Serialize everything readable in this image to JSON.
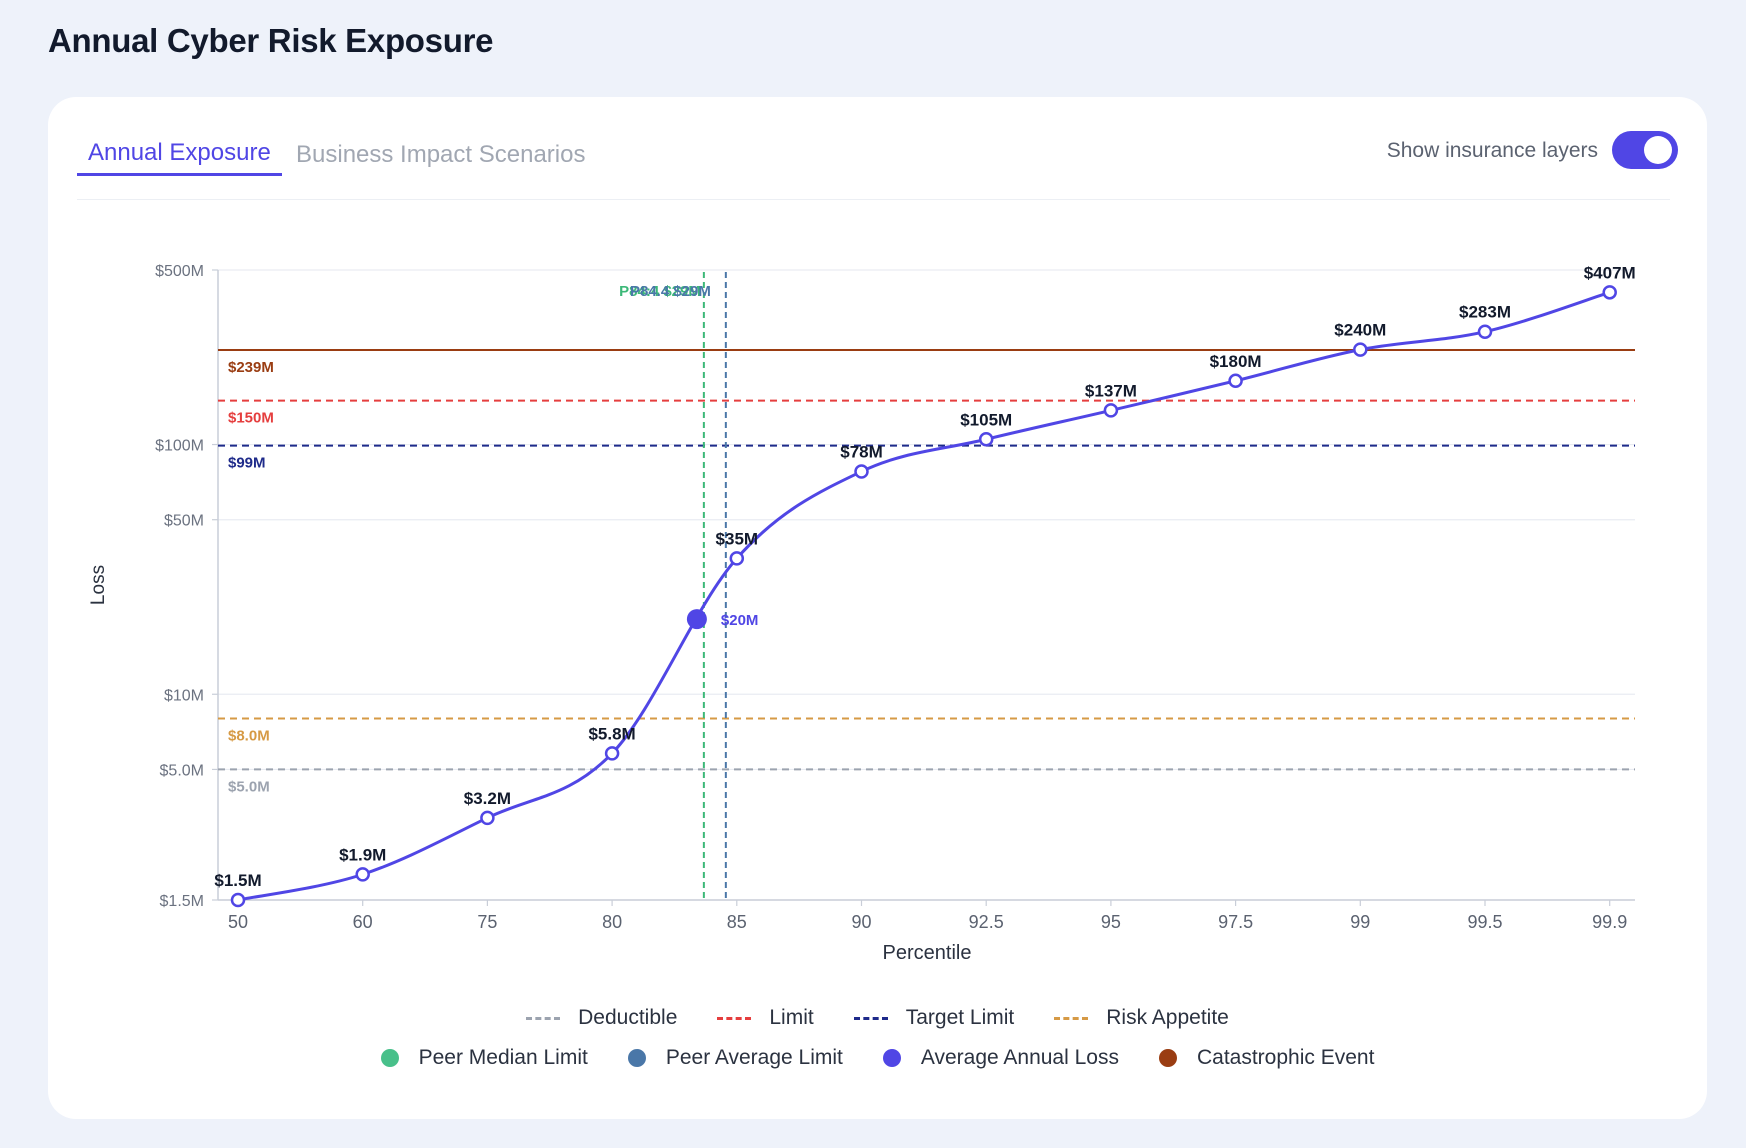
{
  "page": {
    "title": "Annual Cyber Risk Exposure"
  },
  "tabs": [
    {
      "label": "Annual Exposure",
      "active": true
    },
    {
      "label": "Business Impact Scenarios",
      "active": false
    }
  ],
  "toggle": {
    "label": "Show insurance layers",
    "on": true
  },
  "chart_data": {
    "type": "line",
    "xlabel": "Percentile",
    "ylabel": "Loss",
    "yscale": "log",
    "categories": [
      "50",
      "60",
      "75",
      "80",
      "85",
      "90",
      "92.5",
      "95",
      "97.5",
      "99",
      "99.5",
      "99.9"
    ],
    "y_ticks": [
      {
        "value": 1.5,
        "label": "$1.5M"
      },
      {
        "value": 5,
        "label": "$5.0M"
      },
      {
        "value": 10,
        "label": "$10M"
      },
      {
        "value": 50,
        "label": "$50M"
      },
      {
        "value": 100,
        "label": "$100M"
      },
      {
        "value": 500,
        "label": "$500M"
      }
    ],
    "ylim": [
      1.5,
      500
    ],
    "unit": "$M",
    "series": [
      {
        "name": "Average Annual Loss",
        "color": "#5046e5",
        "values": [
          1.5,
          1.9,
          3.2,
          5.8,
          35,
          78,
          105,
          137,
          180,
          240,
          283,
          407
        ],
        "labels": [
          "$1.5M",
          "$1.9M",
          "$3.2M",
          "$5.8M",
          "$35M",
          "$78M",
          "$105M",
          "$137M",
          "$180M",
          "$240M",
          "$283M",
          "$407M"
        ]
      }
    ],
    "highlight_point": {
      "x_position": 83.4,
      "value": 20,
      "label": "$20M",
      "color": "#5046e5"
    },
    "thresholds": [
      {
        "name": "Catastrophic Event",
        "value": 239,
        "label": "$239M",
        "color": "#9a3d12",
        "style": "solid"
      },
      {
        "name": "Limit",
        "value": 150,
        "label": "$150M",
        "color": "#e53e3e",
        "style": "dashed"
      },
      {
        "name": "Target Limit",
        "value": 99,
        "label": "$99M",
        "color": "#1e2a8a",
        "style": "dashed"
      },
      {
        "name": "Risk Appetite",
        "value": 8.0,
        "label": "$8.0M",
        "color": "#d69a45",
        "style": "dashed"
      },
      {
        "name": "Deductible",
        "value": 5.0,
        "label": "$5.0M",
        "color": "#9ca3af",
        "style": "dashed"
      }
    ],
    "vertical_markers": [
      {
        "name": "Peer Median Limit",
        "x_position": 84.0,
        "label": "P84:4 $29M",
        "color": "#3cb878"
      },
      {
        "name": "Peer Average Limit",
        "x_position": 84.4,
        "label": "P84.4 $29M",
        "color": "#4a77a8"
      }
    ],
    "legend": {
      "placement": "bottom",
      "lines": [
        {
          "name": "Deductible",
          "color": "#9ca3af"
        },
        {
          "name": "Limit",
          "color": "#e53e3e"
        },
        {
          "name": "Target Limit",
          "color": "#1e2a8a"
        },
        {
          "name": "Risk Appetite",
          "color": "#d69a45"
        }
      ],
      "dots": [
        {
          "name": "Peer Median Limit",
          "color": "#48c08a"
        },
        {
          "name": "Peer Average Limit",
          "color": "#4a77a8"
        },
        {
          "name": "Average Annual Loss",
          "color": "#5046e5"
        },
        {
          "name": "Catastrophic Event",
          "color": "#9a3d12"
        }
      ]
    }
  }
}
